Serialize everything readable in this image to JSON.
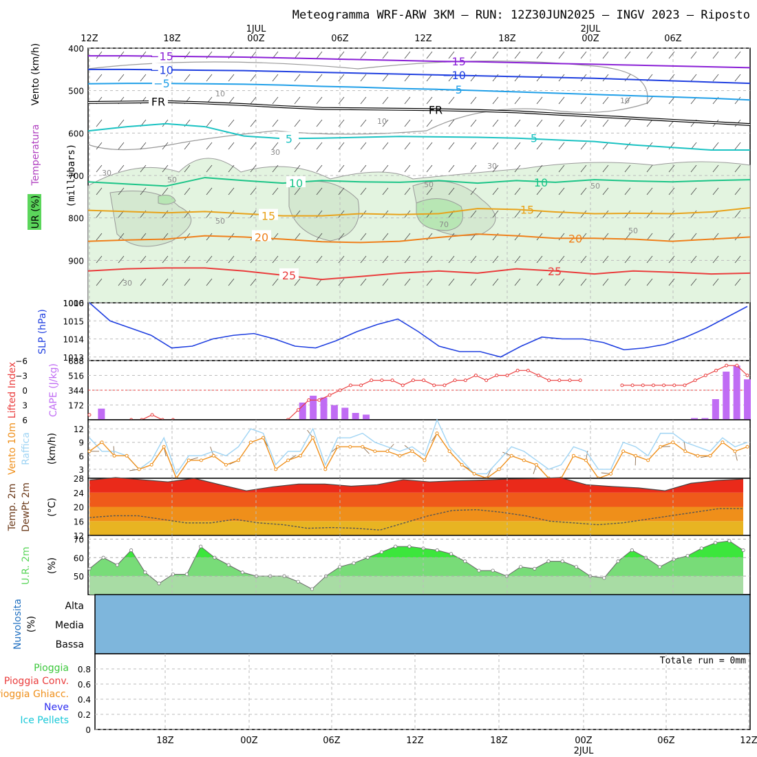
{
  "title": "Meteogramma WRF-ARW 3KM – RUN: 12Z30JUN2025 – INGV 2023 – Riposto",
  "colors": {
    "t_m15": "#8a1fd6",
    "t_m10": "#1f3fe0",
    "t_m5": "#1f9fe8",
    "freezing": "#000000",
    "t_p5": "#19c2c2",
    "t_p10": "#1ac487",
    "t_p15": "#e8a21a",
    "t_p20": "#ef7f1a",
    "t_p25": "#ea3c3c",
    "rh_contour": "#999999",
    "rh_fill": "#e3f4e0",
    "slp": "#1f3fe0",
    "cape": "#c06cf4",
    "lifted": "#ea3c3c",
    "wind": "#ef8f1a",
    "gust": "#9fd4f4",
    "arrow": "#8b6d4f",
    "temp": "#ea2a1a",
    "rh": "#5cd65c",
    "cloud": "#7eb6dc"
  },
  "time_axis": {
    "top_ticks": [
      "12Z",
      "18Z",
      "00Z",
      "06Z",
      "12Z",
      "18Z",
      "00Z",
      "06Z"
    ],
    "top_dates": [
      "1JUL",
      "2JUL"
    ],
    "bottom_ticks": [
      "18Z",
      "00Z",
      "06Z",
      "12Z",
      "18Z",
      "00Z",
      "06Z",
      "12Z"
    ],
    "bottom_date": "2JUL"
  },
  "chart_data": [
    {
      "panel": "profile",
      "type": "line",
      "ylabel": "(millibars)",
      "y_ticks": [
        "400",
        "500",
        "600",
        "700",
        "800",
        "900",
        "1000"
      ],
      "ylim": [
        1000,
        400
      ],
      "side_labels": [
        "Vento (km/h)",
        "Temperatura",
        "UR (%)"
      ],
      "isotherm_labels": [
        "−15",
        "−10",
        "−5",
        "FR",
        "5",
        "10",
        "15",
        "20",
        "25"
      ],
      "rh_labels": [
        "10",
        "30",
        "50",
        "70"
      ],
      "series": [
        {
          "name": "−15",
          "values": [
            418,
            418,
            419,
            420,
            421,
            423,
            425,
            427,
            429,
            431,
            432,
            434,
            436,
            438,
            440,
            442,
            444,
            446
          ]
        },
        {
          "name": "−10",
          "values": [
            450,
            450,
            451,
            452,
            453,
            455,
            457,
            459,
            461,
            463,
            465,
            467,
            469,
            471,
            474,
            477,
            480,
            483
          ]
        },
        {
          "name": "−5",
          "values": [
            484,
            483,
            483,
            484,
            485,
            487,
            490,
            492,
            495,
            497,
            500,
            503,
            506,
            509,
            512,
            515,
            518,
            522
          ]
        },
        {
          "name": "FR",
          "values": [
            528,
            527,
            526,
            529,
            533,
            538,
            542,
            543,
            544,
            545,
            547,
            550,
            555,
            560,
            565,
            570,
            575,
            580
          ]
        },
        {
          "name": "5",
          "values": [
            595,
            585,
            578,
            585,
            607,
            613,
            612,
            610,
            608,
            609,
            610,
            612,
            616,
            620,
            628,
            634,
            640,
            640
          ]
        },
        {
          "name": "10",
          "values": [
            715,
            720,
            725,
            705,
            712,
            718,
            712,
            715,
            716,
            712,
            718,
            712,
            716,
            710,
            713,
            715,
            712,
            710
          ]
        },
        {
          "name": "15",
          "values": [
            782,
            785,
            788,
            785,
            790,
            795,
            795,
            790,
            792,
            790,
            778,
            780,
            786,
            790,
            789,
            790,
            786,
            776
          ]
        },
        {
          "name": "20",
          "values": [
            855,
            852,
            850,
            842,
            845,
            850,
            856,
            858,
            855,
            846,
            838,
            842,
            848,
            848,
            850,
            855,
            850,
            845
          ]
        },
        {
          "name": "25",
          "values": [
            925,
            920,
            918,
            918,
            925,
            935,
            945,
            938,
            930,
            925,
            930,
            920,
            925,
            932,
            925,
            928,
            932,
            930
          ]
        }
      ]
    },
    {
      "panel": "slp",
      "type": "line",
      "ylabel": "SLP (hPa)",
      "y_ticks": [
        "1013",
        "1014",
        "1015",
        "1016"
      ],
      "ylim": [
        1012.8,
        1016
      ],
      "values": [
        1016,
        1015,
        1014.6,
        1014.2,
        1013.5,
        1013.6,
        1014.0,
        1014.2,
        1014.3,
        1014.0,
        1013.6,
        1013.5,
        1013.9,
        1014.4,
        1014.8,
        1015.1,
        1014.4,
        1013.6,
        1013.3,
        1013.3,
        1013.0,
        1013.6,
        1014.1,
        1014.0,
        1014.0,
        1013.8,
        1013.4,
        1013.5,
        1013.7,
        1014.1,
        1014.6,
        1015.2,
        1015.8
      ]
    },
    {
      "panel": "cape",
      "type": "bar",
      "ylabel_left": "Lifted Index",
      "ylabel_right": "CAPE (J/kg)",
      "li_ticks": [
        "−6",
        "−3",
        "0",
        "3",
        "6"
      ],
      "cape_ticks": [
        "688",
        "516",
        "344",
        "172"
      ],
      "cape_ylim": [
        0,
        688
      ],
      "cape": [
        0,
        130,
        0,
        0,
        0,
        0,
        0,
        0,
        0,
        0,
        0,
        0,
        0,
        0,
        0,
        0,
        0,
        0,
        0,
        0,
        200,
        280,
        260,
        170,
        140,
        80,
        60,
        0,
        0,
        0,
        0,
        0,
        0,
        0,
        0,
        0,
        0,
        0,
        0,
        0,
        0,
        0,
        0,
        0,
        0,
        0,
        0,
        0,
        0,
        0,
        0,
        0,
        0,
        0,
        0,
        0,
        0,
        20,
        20,
        240,
        560,
        630,
        470
      ],
      "lifted_index": [
        5,
        null,
        null,
        null,
        6,
        6,
        5,
        6,
        6,
        null,
        null,
        null,
        null,
        null,
        null,
        null,
        null,
        null,
        null,
        6,
        4,
        2,
        2,
        1,
        0,
        -1,
        -1,
        -2,
        -2,
        -2,
        -1,
        -2,
        -2,
        -1,
        -1,
        -2,
        -2,
        -3,
        -2,
        -3,
        -3,
        -4,
        -4,
        -3,
        -2,
        -2,
        -2,
        -2,
        null,
        null,
        null,
        -1,
        -1,
        -1,
        -1,
        -1,
        -1,
        -1,
        -2,
        -3,
        -4,
        -5,
        -5,
        -3
      ]
    },
    {
      "panel": "wind",
      "type": "line",
      "ylabel": "(km/h)",
      "side_labels": [
        "Vento 10m",
        "Raffica"
      ],
      "y_ticks": [
        "3",
        "6",
        "9",
        "12"
      ],
      "ylim": [
        1,
        14
      ],
      "series": [
        {
          "name": "Vento 10m",
          "values": [
            7,
            9,
            6,
            6,
            3,
            4,
            8,
            1,
            5,
            5,
            6,
            4,
            5,
            9,
            10,
            3,
            5,
            6,
            10,
            3,
            8,
            8,
            8,
            7,
            7,
            6,
            7,
            5,
            11,
            7,
            4,
            2,
            1,
            3,
            6,
            5,
            4,
            1,
            1,
            6,
            5,
            1,
            2,
            7,
            6,
            5,
            8,
            9,
            7,
            6,
            6,
            9,
            7,
            8
          ]
        },
        {
          "name": "Raffica",
          "values": [
            10,
            7,
            7,
            6,
            3,
            5,
            10,
            2,
            6,
            6,
            7,
            6,
            8,
            12,
            11,
            4,
            7,
            7,
            12,
            4,
            10,
            10,
            11,
            9,
            8,
            7,
            8,
            6,
            14,
            8,
            5,
            2,
            2,
            5,
            8,
            7,
            5,
            3,
            4,
            8,
            7,
            3,
            3,
            9,
            8,
            6,
            11,
            11,
            9,
            8,
            7,
            10,
            8,
            9
          ]
        }
      ]
    },
    {
      "panel": "temp",
      "type": "area",
      "ylabel": "(°C)",
      "side_labels": [
        "Temp. 2m",
        "DewPt 2m"
      ],
      "y_ticks": [
        "12",
        "16",
        "20",
        "24",
        "28"
      ],
      "ylim": [
        12,
        28
      ],
      "series": [
        {
          "name": "Temp. 2m",
          "values": [
            27.5,
            28.2,
            27.6,
            27.0,
            28.0,
            26.2,
            24.5,
            25.6,
            26.4,
            26.4,
            25.8,
            26.2,
            27.6,
            27.0,
            27.3,
            27.5,
            27.8,
            27.9,
            28.2,
            26.2,
            25.7,
            25.3,
            24.5,
            26.6,
            27.4,
            27.8
          ]
        },
        {
          "name": "DewPt 2m",
          "values": [
            17.0,
            17.5,
            17.5,
            16.5,
            15.5,
            15.5,
            16.5,
            15.5,
            15.0,
            14.0,
            14.2,
            14.0,
            13.5,
            15.5,
            17.5,
            19.0,
            19.2,
            18.5,
            17.5,
            16.0,
            15.5,
            15.0,
            15.5,
            16.5,
            17.5,
            18.5,
            19.5,
            19.5
          ]
        }
      ]
    },
    {
      "panel": "rh",
      "type": "area",
      "ylabel": "U.R. 2m",
      "unit": "(%)",
      "y_ticks": [
        "50",
        "60",
        "70"
      ],
      "ylim": [
        40,
        72
      ],
      "values": [
        54,
        60,
        56,
        64,
        52,
        46,
        51,
        51,
        66,
        60,
        56,
        52,
        50,
        50,
        50,
        47,
        43,
        50,
        55,
        57,
        60,
        63,
        66,
        66,
        65,
        64,
        62,
        58,
        53,
        53,
        50,
        55,
        54,
        58,
        58,
        55,
        50,
        49,
        58,
        64,
        60,
        55,
        59,
        61,
        65,
        68,
        69,
        64
      ]
    },
    {
      "panel": "clouds",
      "type": "area",
      "side_labels": [
        "Nuvolosita",
        "(%)"
      ],
      "levels": [
        "Alta",
        "Media",
        "Bassa"
      ]
    },
    {
      "panel": "precip",
      "type": "bar",
      "total_label": "Totale run =  0mm",
      "y_ticks": [
        "0",
        "0.2",
        "0.4",
        "0.6",
        "0.8"
      ],
      "ylim": [
        0,
        1
      ],
      "legend": [
        {
          "label": "Pioggia",
          "color": "#3cc83c"
        },
        {
          "label": "Pioggia Conv.",
          "color": "#ea3c3c"
        },
        {
          "label": "Pioggia Ghiacc.",
          "color": "#ef8f1a"
        },
        {
          "label": "Neve",
          "color": "#2f2ff0"
        },
        {
          "label": "Ice Pellets",
          "color": "#19c8d8"
        }
      ]
    }
  ]
}
